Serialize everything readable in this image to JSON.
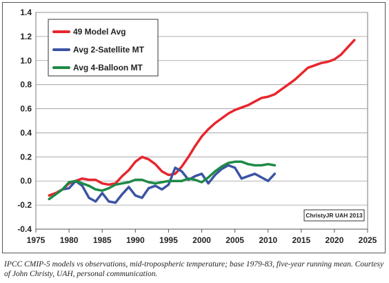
{
  "chart_data": {
    "type": "line",
    "title": "",
    "xlabel": "",
    "ylabel": "",
    "xlim": [
      1975,
      2025
    ],
    "ylim": [
      -0.4,
      1.4
    ],
    "x_ticks": [
      1975,
      1980,
      1985,
      1990,
      1995,
      2000,
      2005,
      2010,
      2015,
      2020,
      2025
    ],
    "x_tick_labels": [
      "1975",
      "1980",
      "1985",
      "1990",
      "1995",
      "2000",
      "2005",
      "2010",
      "2015",
      "2020",
      "2025"
    ],
    "y_ticks": [
      -0.4,
      -0.2,
      0.0,
      0.2,
      0.4,
      0.6,
      0.8,
      1.0,
      1.2,
      1.4
    ],
    "y_tick_labels": [
      "-0.4",
      "-0.2",
      "0.0",
      "0.2",
      "0.4",
      "0.6",
      "0.8",
      "1.0",
      "1.2",
      "1.4"
    ],
    "grid": "horizontal",
    "legend_position": "top-left",
    "annotation": "ChristyJR UAH 2013",
    "series": [
      {
        "name": "49 Model Avg",
        "color": "#e8262d",
        "x": [
          1977,
          1978,
          1979,
          1980,
          1981,
          1982,
          1983,
          1984,
          1985,
          1986,
          1987,
          1988,
          1989,
          1990,
          1991,
          1992,
          1993,
          1994,
          1995,
          1996,
          1997,
          1998,
          1999,
          2000,
          2001,
          2002,
          2003,
          2004,
          2005,
          2006,
          2007,
          2008,
          2009,
          2010,
          2011,
          2012,
          2013,
          2014,
          2015,
          2016,
          2017,
          2018,
          2019,
          2020,
          2021,
          2022,
          2023
        ],
        "y": [
          -0.12,
          -0.1,
          -0.07,
          -0.02,
          0.0,
          0.02,
          0.01,
          0.01,
          -0.02,
          -0.03,
          -0.02,
          0.04,
          0.09,
          0.16,
          0.2,
          0.18,
          0.14,
          0.08,
          0.05,
          0.06,
          0.12,
          0.2,
          0.29,
          0.37,
          0.43,
          0.48,
          0.52,
          0.56,
          0.59,
          0.61,
          0.63,
          0.66,
          0.69,
          0.7,
          0.72,
          0.76,
          0.8,
          0.84,
          0.89,
          0.94,
          0.96,
          0.98,
          0.99,
          1.01,
          1.05,
          1.11,
          1.17
        ]
      },
      {
        "name": "Avg 2-Satellite MT",
        "color": "#3b54a3",
        "x": [
          1979,
          1980,
          1981,
          1982,
          1983,
          1984,
          1985,
          1986,
          1987,
          1988,
          1989,
          1990,
          1991,
          1992,
          1993,
          1994,
          1995,
          1996,
          1997,
          1998,
          1999,
          2000,
          2001,
          2002,
          2003,
          2004,
          2005,
          2006,
          2007,
          2008,
          2009,
          2010,
          2011
        ],
        "y": [
          -0.07,
          -0.06,
          0.0,
          -0.04,
          -0.14,
          -0.17,
          -0.1,
          -0.17,
          -0.18,
          -0.11,
          -0.05,
          -0.12,
          -0.14,
          -0.06,
          -0.04,
          -0.07,
          -0.03,
          0.11,
          0.08,
          0.01,
          0.04,
          0.06,
          -0.02,
          0.05,
          0.1,
          0.13,
          0.11,
          0.02,
          0.04,
          0.06,
          0.03,
          0.0,
          0.06
        ]
      },
      {
        "name": "Avg 4-Balloon MT",
        "color": "#1e8a45",
        "x": [
          1977,
          1978,
          1979,
          1980,
          1981,
          1982,
          1983,
          1984,
          1985,
          1986,
          1987,
          1988,
          1989,
          1990,
          1991,
          1992,
          1993,
          1994,
          1995,
          1996,
          1997,
          1998,
          1999,
          2000,
          2001,
          2002,
          2003,
          2004,
          2005,
          2006,
          2007,
          2008,
          2009,
          2010,
          2011
        ],
        "y": [
          -0.15,
          -0.11,
          -0.07,
          -0.01,
          0.0,
          -0.02,
          -0.04,
          -0.07,
          -0.08,
          -0.06,
          -0.03,
          -0.02,
          -0.01,
          0.01,
          0.01,
          -0.01,
          -0.02,
          -0.01,
          0.0,
          0.0,
          0.0,
          0.02,
          0.01,
          -0.01,
          0.03,
          0.08,
          0.12,
          0.15,
          0.16,
          0.16,
          0.14,
          0.13,
          0.13,
          0.14,
          0.13
        ]
      }
    ]
  },
  "caption": "IPCC CMIP-5 models vs observations, mid-tropospheric temperature; base 1979-83, five-year running mean. Courtesy of John Christy, UAH, personal communication."
}
